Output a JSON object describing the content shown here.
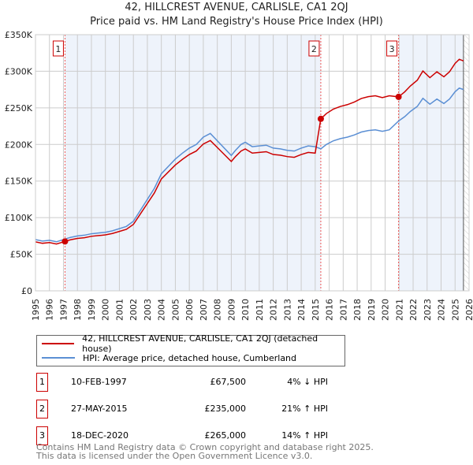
{
  "chart_data": {
    "type": "line",
    "title": "42, HILLCREST AVENUE, CARLISLE, CA1 2QJ",
    "subtitle": "Price paid vs. HM Land Registry's House Price Index (HPI)",
    "xlim": [
      1995,
      2026
    ],
    "ylim": [
      0,
      350000
    ],
    "yticks": [
      {
        "v": 0,
        "label": "£0"
      },
      {
        "v": 50000,
        "label": "£50K"
      },
      {
        "v": 100000,
        "label": "£100K"
      },
      {
        "v": 150000,
        "label": "£150K"
      },
      {
        "v": 200000,
        "label": "£200K"
      },
      {
        "v": 250000,
        "label": "£250K"
      },
      {
        "v": 300000,
        "label": "£300K"
      },
      {
        "v": 350000,
        "label": "£350K"
      }
    ],
    "xticks": [
      "1995",
      "1996",
      "1997",
      "1998",
      "1999",
      "2000",
      "2001",
      "2002",
      "2003",
      "2004",
      "2005",
      "2006",
      "2007",
      "2008",
      "2009",
      "2010",
      "2011",
      "2012",
      "2013",
      "2014",
      "2015",
      "2016",
      "2017",
      "2018",
      "2019",
      "2020",
      "2021",
      "2022",
      "2023",
      "2024",
      "2025",
      "2026"
    ],
    "grid": true,
    "data_end": 2025.6,
    "colors": {
      "property": "#cc0000",
      "hpi": "#5b8fd4",
      "shade": "#eef3fb"
    },
    "hpi": {
      "x": [
        1995,
        1995.5,
        1996,
        1996.5,
        1997,
        1997.5,
        1998,
        1998.5,
        1999,
        1999.5,
        2000,
        2000.5,
        2001,
        2001.5,
        2002,
        2002.5,
        2003,
        2003.5,
        2004,
        2004.5,
        2005,
        2005.5,
        2006,
        2006.5,
        2007,
        2007.5,
        2008,
        2008.5,
        2009,
        2009.3,
        2009.7,
        2010,
        2010.5,
        2011,
        2011.5,
        2012,
        2012.5,
        2013,
        2013.5,
        2014,
        2014.5,
        2015,
        2015.4,
        2015.8,
        2016.3,
        2016.8,
        2017.3,
        2017.8,
        2018.3,
        2018.8,
        2019.3,
        2019.8,
        2020.3,
        2020.96,
        2021.4,
        2021.8,
        2022.3,
        2022.7,
        2023.2,
        2023.7,
        2024.2,
        2024.6,
        2025,
        2025.3,
        2025.6
      ],
      "y": [
        70000,
        68000,
        69000,
        67000,
        70000,
        73000,
        75000,
        76000,
        78000,
        79000,
        80000,
        82000,
        85000,
        88000,
        95000,
        110000,
        125000,
        140000,
        160000,
        170000,
        180000,
        188000,
        195000,
        200000,
        210000,
        215000,
        205000,
        195000,
        185000,
        192000,
        200000,
        203000,
        197000,
        198000,
        199000,
        195000,
        194000,
        192000,
        191000,
        195000,
        198000,
        197000,
        194000,
        200000,
        205000,
        208000,
        210000,
        213000,
        217000,
        219000,
        220000,
        218000,
        220000,
        232000,
        238000,
        245000,
        252000,
        263000,
        255000,
        262000,
        256000,
        262000,
        272000,
        277000,
        275000
      ]
    },
    "series": [
      {
        "name": "42, HILLCREST AVENUE, CARLISLE, CA1 2QJ (detached house)"
      },
      {
        "name": "HPI: Average price, detached house, Cumberland"
      }
    ],
    "sales": [
      {
        "n": "1",
        "x": 1997.11,
        "date": "10-FEB-1997",
        "price": 67500,
        "price_label": "£67,500",
        "hpi": "4% ↓ HPI"
      },
      {
        "n": "2",
        "x": 2015.4,
        "date": "27-MAY-2015",
        "price": 235000,
        "price_label": "£235,000",
        "hpi": "21% ↑ HPI"
      },
      {
        "n": "3",
        "x": 2020.96,
        "date": "18-DEC-2020",
        "price": 265000,
        "price_label": "£265,000",
        "hpi": "14% ↑ HPI"
      }
    ]
  },
  "footer": {
    "line1": "Contains HM Land Registry data © Crown copyright and database right 2025.",
    "line2": "This data is licensed under the Open Government Licence v3.0."
  }
}
